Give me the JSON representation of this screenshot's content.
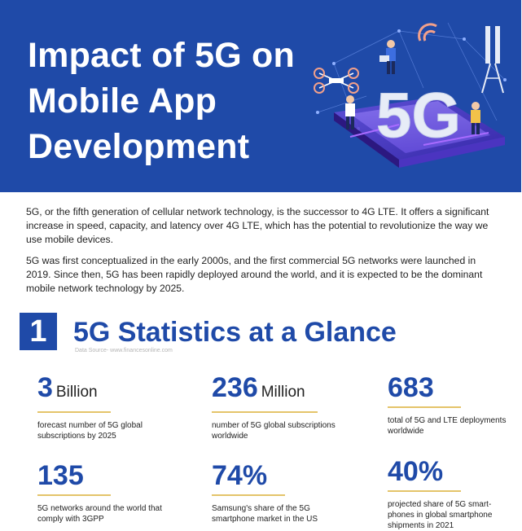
{
  "hero": {
    "title_lines": [
      "Impact of 5G on",
      "Mobile App",
      "Development"
    ],
    "art_label": "5G"
  },
  "intro": {
    "paragraph_1": "5G, or the fifth generation of cellular network technology, is the successor to 4G LTE. It offers a significant increase in speed, capacity, and latency over 4G LTE, which has the potential to revolutionize the way we use mobile devices.",
    "paragraph_2": "5G was first conceptualized in the early 2000s, and the first commercial 5G networks were launched in 2019. Since then, 5G has been rapidly deployed around the world, and it is expected to be the dominant mobile network technology by 2025."
  },
  "section": {
    "number": "1",
    "title": "5G Statistics at a Glance",
    "data_source": "Data Source- www.financesonline.com"
  },
  "stats": [
    {
      "value": "3",
      "unit": "Billion",
      "desc": "forecast number of 5G global subscriptions by 2025"
    },
    {
      "value": "236",
      "unit": "Million",
      "desc": "number of 5G global subscriptions worldwide"
    },
    {
      "value": "683",
      "unit": "",
      "desc": "total of 5G and LTE deployments worldwide"
    },
    {
      "value": "135",
      "unit": "",
      "desc": "5G networks around the world that comply with 3GPP"
    },
    {
      "value": "74%",
      "unit": "",
      "desc": "Samsung's share of the 5G smartphone market in the US"
    },
    {
      "value": "40%",
      "unit": "",
      "desc": "projected share of 5G smart-phones in global smartphone shipments in 2021"
    }
  ],
  "colors": {
    "brand_blue": "#1f4aa8",
    "gold_rule": "#e4c46a",
    "text": "#222222"
  }
}
